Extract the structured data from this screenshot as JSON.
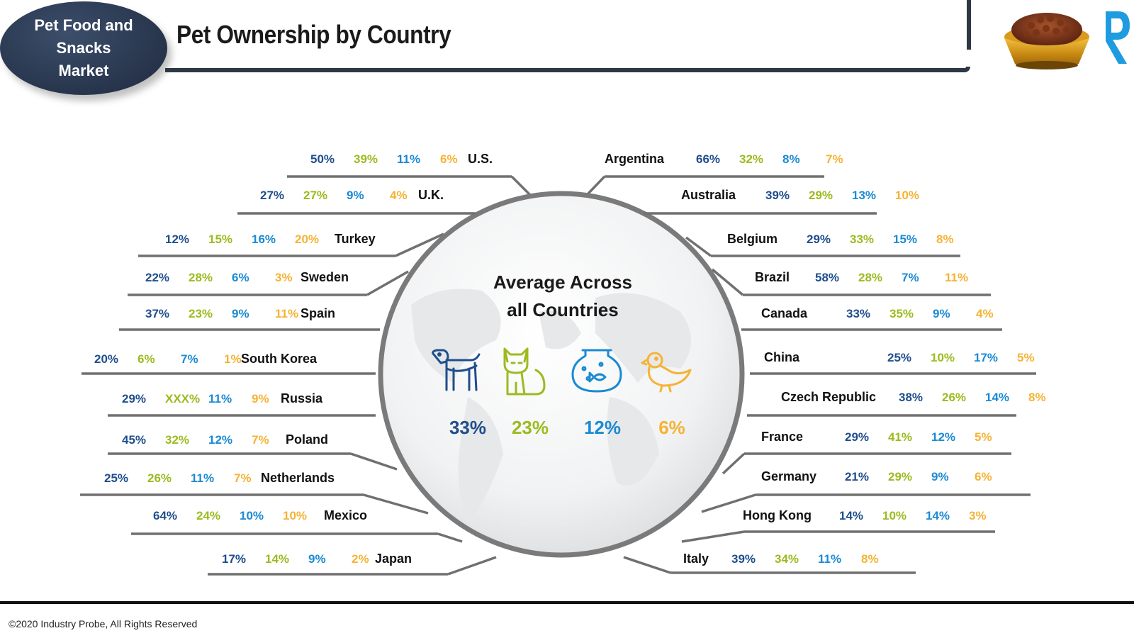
{
  "header": {
    "badge_label": "Pet Food and Snacks Market",
    "title": "Pet Ownership by Country"
  },
  "footer": {
    "copyright": "©2020 Industry Probe, All Rights Reserved"
  },
  "colors": {
    "dog": "#1f4e8c",
    "cat": "#9bbb1f",
    "fish": "#1b8ad3",
    "bird": "#f5b335",
    "dark": "#2d3746"
  },
  "icons": [
    "dog-icon",
    "cat-icon",
    "fish-bowl-icon",
    "bird-icon",
    "pet-food-bowl-icon",
    "brand-logo-icon",
    "globe-icon"
  ],
  "chart_data": {
    "type": "table",
    "title": "Pet Ownership by Country",
    "columns": [
      "dog",
      "cat",
      "fish",
      "bird"
    ],
    "average": {
      "label": "Average Across all Countries",
      "label_lines": [
        "Average Across",
        "all Countries"
      ],
      "values": [
        "33%",
        "23%",
        "12%",
        "6%"
      ]
    },
    "left_countries": [
      {
        "country": "U.S.",
        "values": [
          "50%",
          "39%",
          "11%",
          "6%"
        ]
      },
      {
        "country": "U.K.",
        "values": [
          "27%",
          "27%",
          "9%",
          "4%"
        ]
      },
      {
        "country": "Turkey",
        "values": [
          "12%",
          "15%",
          "16%",
          "20%"
        ]
      },
      {
        "country": "Sweden",
        "values": [
          "22%",
          "28%",
          "6%",
          "3%"
        ]
      },
      {
        "country": "Spain",
        "values": [
          "37%",
          "23%",
          "9%",
          "11%"
        ]
      },
      {
        "country": "South Korea",
        "values": [
          "20%",
          "6%",
          "7%",
          "1%"
        ]
      },
      {
        "country": "Russia",
        "values": [
          "29%",
          "XXX%",
          "11%",
          "9%"
        ]
      },
      {
        "country": "Poland",
        "values": [
          "45%",
          "32%",
          "12%",
          "7%"
        ]
      },
      {
        "country": "Netherlands",
        "values": [
          "25%",
          "26%",
          "11%",
          "7%"
        ]
      },
      {
        "country": "Mexico",
        "values": [
          "64%",
          "24%",
          "10%",
          "10%"
        ]
      },
      {
        "country": "Japan",
        "values": [
          "17%",
          "14%",
          "9%",
          "2%"
        ]
      }
    ],
    "right_countries": [
      {
        "country": "Argentina",
        "values": [
          "66%",
          "32%",
          "8%",
          "7%"
        ]
      },
      {
        "country": "Australia",
        "values": [
          "39%",
          "29%",
          "13%",
          "10%"
        ]
      },
      {
        "country": "Belgium",
        "values": [
          "29%",
          "33%",
          "15%",
          "8%"
        ]
      },
      {
        "country": "Brazil",
        "values": [
          "58%",
          "28%",
          "7%",
          "11%"
        ]
      },
      {
        "country": "Canada",
        "values": [
          "33%",
          "35%",
          "9%",
          "4%"
        ]
      },
      {
        "country": "China",
        "values": [
          "25%",
          "10%",
          "17%",
          "5%"
        ]
      },
      {
        "country": "Czech Republic",
        "values": [
          "38%",
          "26%",
          "14%",
          "8%"
        ]
      },
      {
        "country": "France",
        "values": [
          "29%",
          "41%",
          "12%",
          "5%"
        ]
      },
      {
        "country": "Germany",
        "values": [
          "21%",
          "29%",
          "9%",
          "6%"
        ]
      },
      {
        "country": "Hong Kong",
        "values": [
          "14%",
          "10%",
          "14%",
          "3%"
        ]
      },
      {
        "country": "Italy",
        "values": [
          "39%",
          "34%",
          "11%",
          "8%"
        ]
      }
    ]
  }
}
